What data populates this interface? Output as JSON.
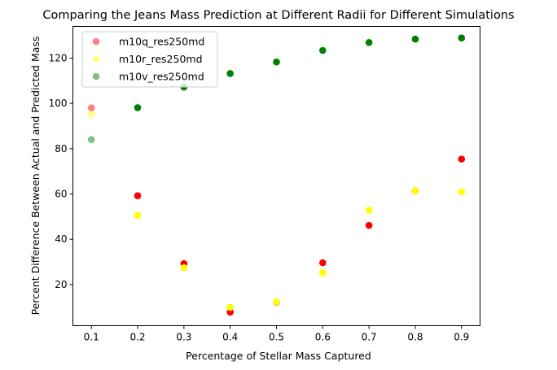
{
  "chart_data": {
    "type": "scatter",
    "title": "Comparing the Jeans Mass Prediction at Different Radii for Different Simulations",
    "xlabel": "Percentage of Stellar Mass Captured",
    "ylabel": "Percent Difference Between Actual and Predicted Mass",
    "xlim": [
      0.06,
      0.94
    ],
    "ylim": [
      1.8,
      134.0
    ],
    "xticks": [
      0.1,
      0.2,
      0.3,
      0.4,
      0.5,
      0.6,
      0.7,
      0.8,
      0.9
    ],
    "xtick_labels": [
      "0.1",
      "0.2",
      "0.3",
      "0.4",
      "0.5",
      "0.6",
      "0.7",
      "0.8",
      "0.9"
    ],
    "yticks": [
      20,
      40,
      60,
      80,
      100,
      120
    ],
    "ytick_labels": [
      "20",
      "40",
      "60",
      "80",
      "100",
      "120"
    ],
    "grid": false,
    "legend_position": "top-left",
    "series": [
      {
        "name": "m10q_res250md",
        "color": "#ff0000",
        "x": [
          0.1,
          0.2,
          0.3,
          0.4,
          0.5,
          0.6,
          0.7,
          0.8,
          0.9
        ],
        "y": [
          98.0,
          59.2,
          29.2,
          7.8,
          12.2,
          29.6,
          46.1,
          61.4,
          75.4
        ]
      },
      {
        "name": "m10r_res250md",
        "color": "#ffff00",
        "x": [
          0.1,
          0.2,
          0.3,
          0.4,
          0.5,
          0.6,
          0.7,
          0.8,
          0.9
        ],
        "y": [
          95.3,
          50.5,
          27.4,
          9.9,
          12.3,
          25.2,
          52.8,
          61.4,
          60.9
        ]
      },
      {
        "name": "m10v_res250md",
        "color": "#008000",
        "x": [
          0.1,
          0.2,
          0.3,
          0.4,
          0.5,
          0.6,
          0.7,
          0.8,
          0.9
        ],
        "y": [
          84.0,
          98.1,
          107.2,
          113.2,
          118.3,
          123.4,
          126.9,
          128.4,
          128.9
        ]
      }
    ]
  }
}
